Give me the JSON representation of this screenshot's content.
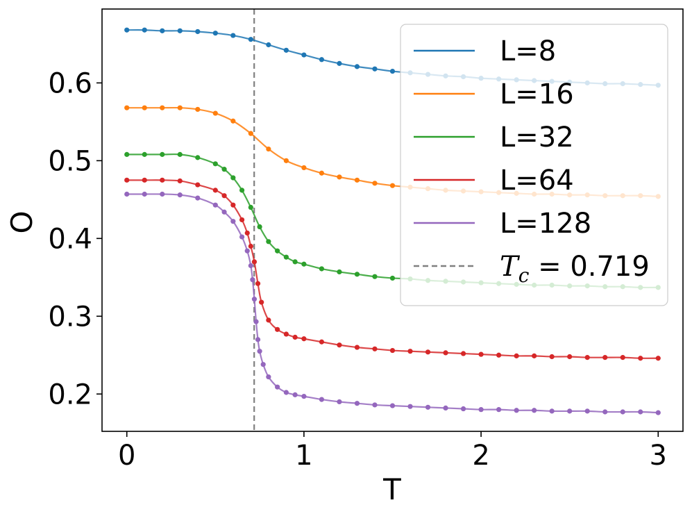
{
  "chart_data": {
    "type": "line",
    "xlabel": "T",
    "ylabel": "O",
    "xlim": [
      -0.14,
      3.14
    ],
    "ylim": [
      0.152,
      0.695
    ],
    "xticks": [
      0,
      1,
      2,
      3
    ],
    "xtick_labels": [
      "0",
      "1",
      "2",
      "3"
    ],
    "yticks": [
      0.2,
      0.3,
      0.4,
      0.5,
      0.6
    ],
    "ytick_labels": [
      "0.2",
      "0.3",
      "0.4",
      "0.5",
      "0.6"
    ],
    "grid": false,
    "legend_position": "top-right",
    "markers": true,
    "series": [
      {
        "name": "L=8",
        "color": "#1f77b4",
        "x": [
          0,
          0.1,
          0.2,
          0.3,
          0.4,
          0.5,
          0.6,
          0.7,
          0.8,
          0.9,
          1.0,
          1.1,
          1.2,
          1.3,
          1.4,
          1.5,
          1.6,
          1.7,
          1.8,
          1.9,
          2.0,
          2.1,
          2.2,
          2.3,
          2.4,
          2.5,
          2.6,
          2.7,
          2.8,
          2.9,
          3.0
        ],
        "y": [
          0.668,
          0.668,
          0.667,
          0.667,
          0.666,
          0.664,
          0.661,
          0.656,
          0.649,
          0.642,
          0.636,
          0.63,
          0.625,
          0.621,
          0.618,
          0.615,
          0.613,
          0.611,
          0.609,
          0.608,
          0.606,
          0.605,
          0.604,
          0.603,
          0.602,
          0.601,
          0.6,
          0.599,
          0.599,
          0.598,
          0.597
        ]
      },
      {
        "name": "L=16",
        "color": "#ff7f0e",
        "x": [
          0,
          0.1,
          0.2,
          0.3,
          0.4,
          0.5,
          0.6,
          0.7,
          0.8,
          0.9,
          1.0,
          1.1,
          1.2,
          1.3,
          1.4,
          1.5,
          1.6,
          1.7,
          1.8,
          1.9,
          2.0,
          2.1,
          2.2,
          2.3,
          2.4,
          2.5,
          2.6,
          2.7,
          2.8,
          2.9,
          3.0
        ],
        "y": [
          0.568,
          0.568,
          0.568,
          0.568,
          0.566,
          0.561,
          0.551,
          0.535,
          0.515,
          0.5,
          0.491,
          0.484,
          0.479,
          0.475,
          0.471,
          0.468,
          0.466,
          0.464,
          0.462,
          0.461,
          0.46,
          0.459,
          0.458,
          0.457,
          0.457,
          0.456,
          0.456,
          0.455,
          0.455,
          0.455,
          0.454
        ]
      },
      {
        "name": "L=32",
        "color": "#2ca02c",
        "x": [
          0,
          0.1,
          0.2,
          0.3,
          0.4,
          0.5,
          0.55,
          0.6,
          0.65,
          0.7,
          0.75,
          0.8,
          0.85,
          0.9,
          0.95,
          1.0,
          1.1,
          1.2,
          1.3,
          1.4,
          1.5,
          1.6,
          1.7,
          1.8,
          1.9,
          2.0,
          2.1,
          2.2,
          2.3,
          2.4,
          2.5,
          2.6,
          2.7,
          2.8,
          2.9,
          3.0
        ],
        "y": [
          0.508,
          0.508,
          0.508,
          0.508,
          0.504,
          0.496,
          0.489,
          0.478,
          0.462,
          0.44,
          0.415,
          0.396,
          0.384,
          0.376,
          0.37,
          0.367,
          0.361,
          0.357,
          0.354,
          0.351,
          0.349,
          0.348,
          0.346,
          0.345,
          0.344,
          0.343,
          0.342,
          0.341,
          0.34,
          0.34,
          0.339,
          0.339,
          0.338,
          0.338,
          0.337,
          0.337
        ]
      },
      {
        "name": "L=64",
        "color": "#d62728",
        "x": [
          0,
          0.1,
          0.2,
          0.3,
          0.4,
          0.5,
          0.55,
          0.6,
          0.65,
          0.68,
          0.7,
          0.72,
          0.74,
          0.76,
          0.8,
          0.85,
          0.9,
          0.95,
          1.0,
          1.1,
          1.2,
          1.3,
          1.4,
          1.5,
          1.6,
          1.7,
          1.8,
          1.9,
          2.0,
          2.1,
          2.2,
          2.3,
          2.4,
          2.5,
          2.6,
          2.7,
          2.8,
          2.9,
          3.0
        ],
        "y": [
          0.475,
          0.475,
          0.475,
          0.474,
          0.469,
          0.462,
          0.455,
          0.443,
          0.424,
          0.407,
          0.39,
          0.37,
          0.342,
          0.318,
          0.295,
          0.283,
          0.277,
          0.273,
          0.271,
          0.267,
          0.263,
          0.26,
          0.258,
          0.256,
          0.255,
          0.254,
          0.253,
          0.252,
          0.251,
          0.25,
          0.249,
          0.249,
          0.248,
          0.248,
          0.247,
          0.247,
          0.247,
          0.246,
          0.246
        ]
      },
      {
        "name": "L=128",
        "color": "#9467bd",
        "x": [
          0,
          0.1,
          0.2,
          0.3,
          0.4,
          0.5,
          0.55,
          0.6,
          0.65,
          0.68,
          0.7,
          0.71,
          0.72,
          0.73,
          0.74,
          0.75,
          0.77,
          0.8,
          0.85,
          0.9,
          0.95,
          1.0,
          1.1,
          1.2,
          1.3,
          1.4,
          1.5,
          1.6,
          1.7,
          1.8,
          1.9,
          2.0,
          2.1,
          2.2,
          2.3,
          2.4,
          2.5,
          2.6,
          2.7,
          2.8,
          2.9,
          3.0
        ],
        "y": [
          0.457,
          0.457,
          0.457,
          0.456,
          0.452,
          0.443,
          0.434,
          0.422,
          0.402,
          0.384,
          0.365,
          0.347,
          0.322,
          0.293,
          0.27,
          0.255,
          0.238,
          0.222,
          0.209,
          0.202,
          0.199,
          0.197,
          0.193,
          0.19,
          0.188,
          0.186,
          0.185,
          0.184,
          0.183,
          0.182,
          0.181,
          0.18,
          0.18,
          0.179,
          0.179,
          0.178,
          0.178,
          0.178,
          0.177,
          0.177,
          0.177,
          0.176
        ]
      }
    ],
    "vline": {
      "x": 0.719,
      "color": "#808080",
      "style": "dashed",
      "legend_symbol": "T",
      "legend_subscript": "c",
      "legend_text": " = 0.719"
    }
  }
}
